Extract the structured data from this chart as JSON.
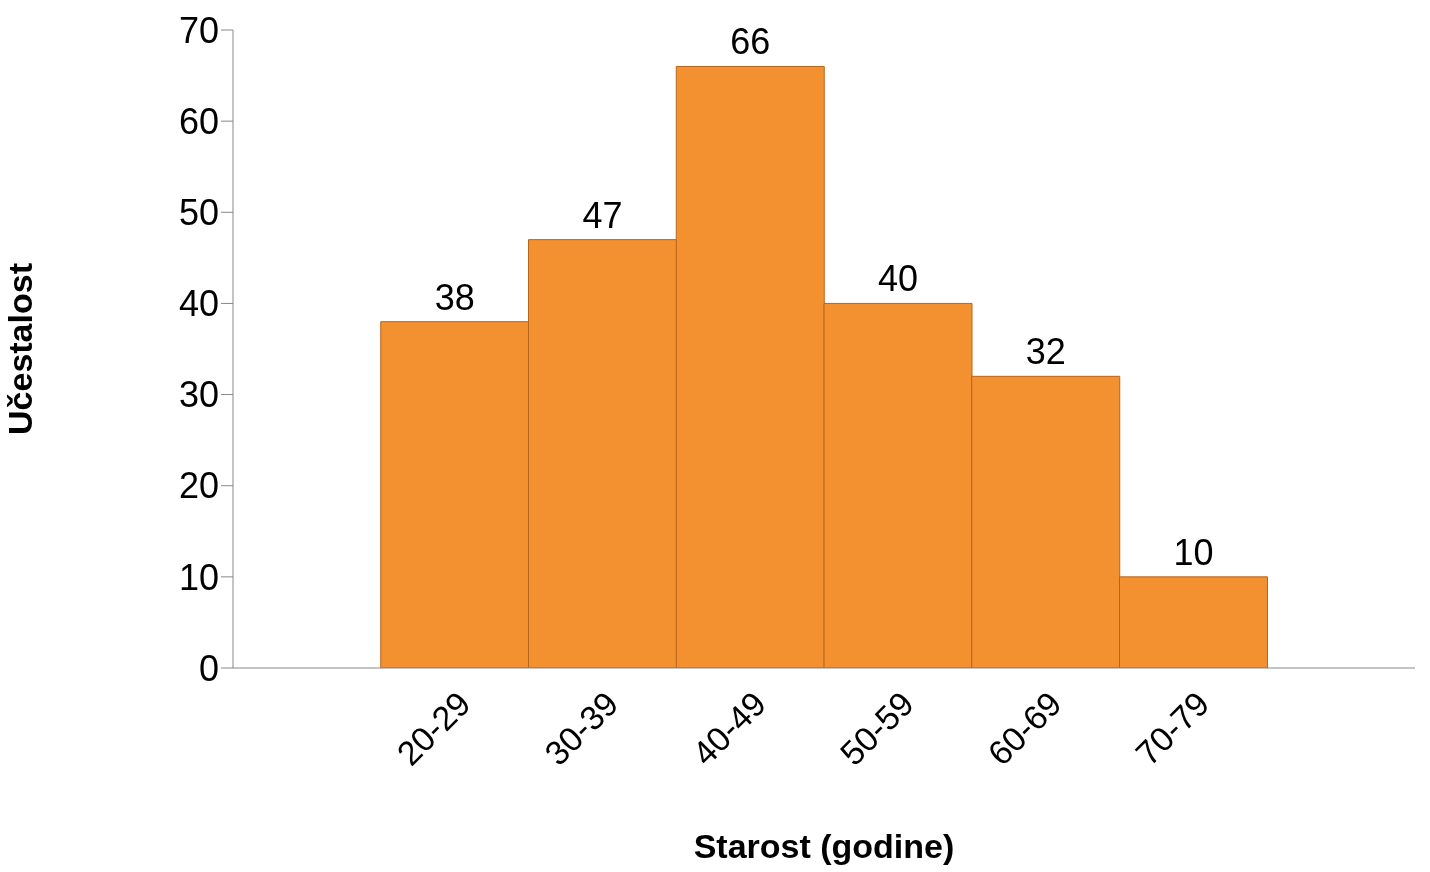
{
  "chart_data": {
    "type": "bar",
    "xlabel": "Starost (godine)",
    "ylabel": "Učestalost",
    "categories": [
      null,
      "20-29",
      "30-39",
      "40-49",
      "50-59",
      "60-69",
      "70-79",
      null
    ],
    "values": [
      null,
      38,
      47,
      66,
      40,
      32,
      10,
      null
    ],
    "color": "#f39130",
    "ylim": [
      0,
      70
    ],
    "yticks": [
      0,
      10,
      20,
      30,
      40,
      50,
      60,
      70
    ],
    "data_labels": true,
    "grid": false,
    "legend": false
  }
}
